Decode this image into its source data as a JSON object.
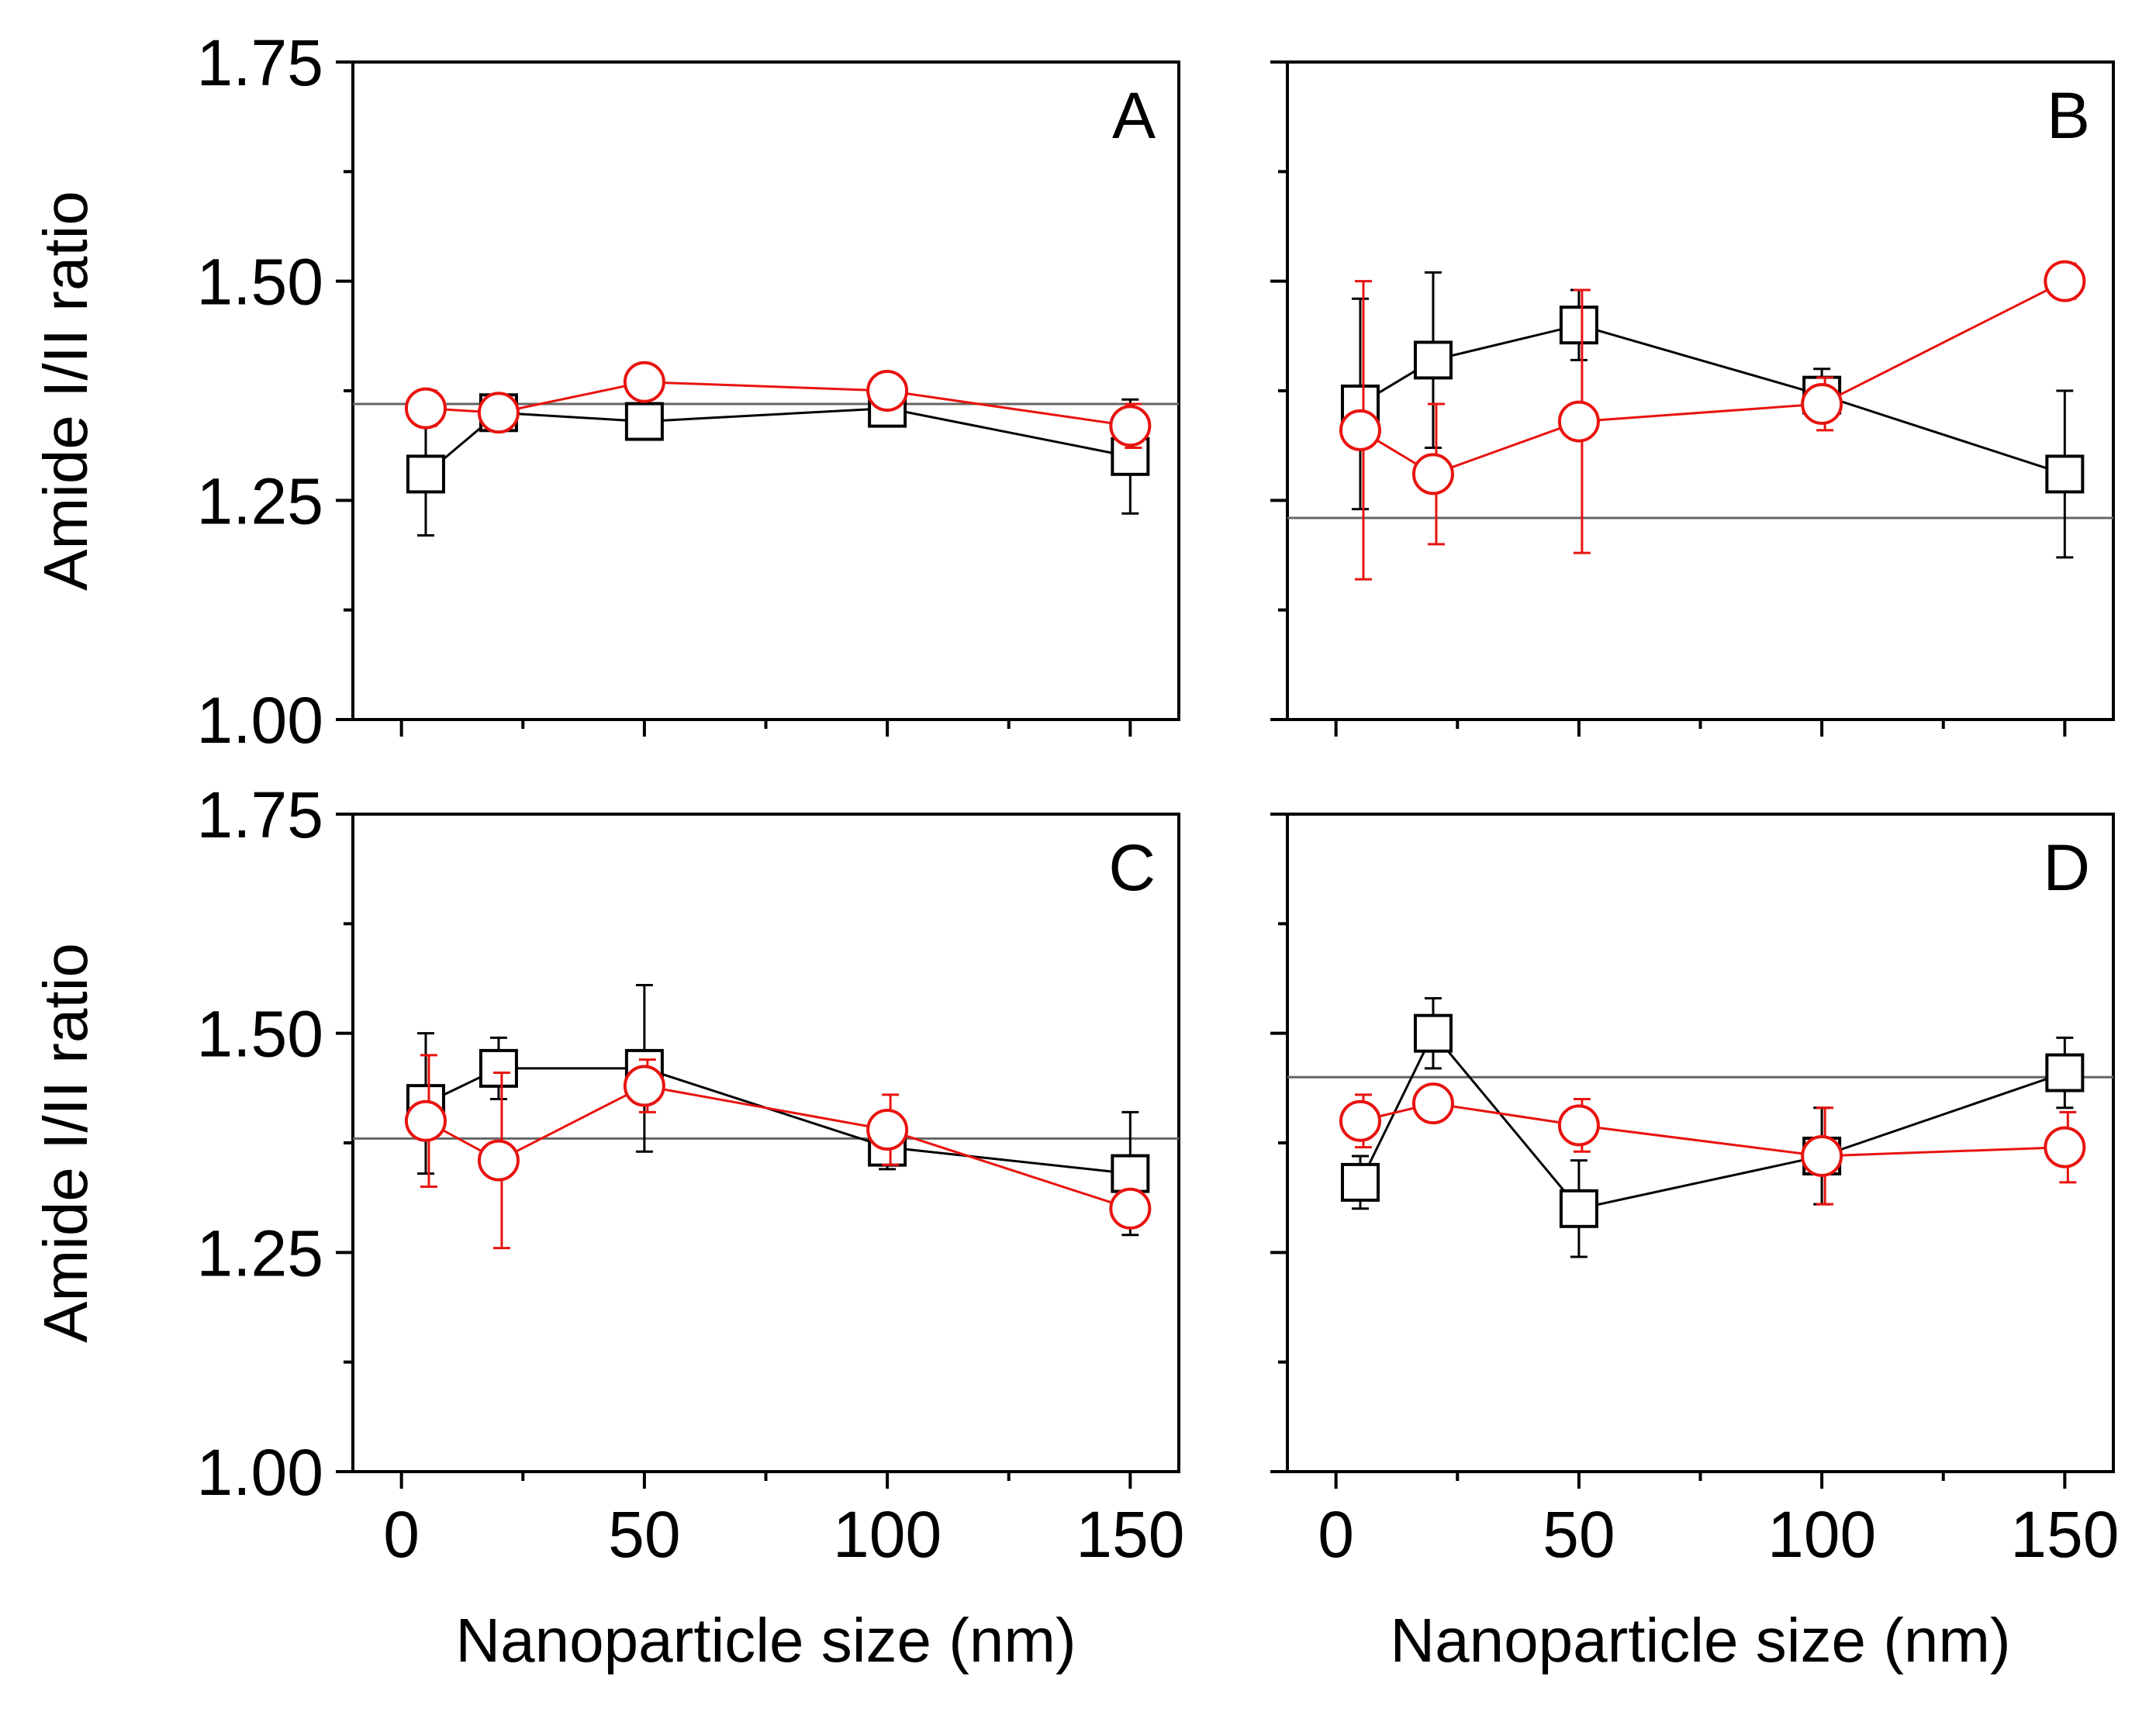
{
  "chart_data": [
    {
      "panel": "A",
      "type": "scatter",
      "xlabel": "",
      "ylabel": "Amide I/II ratio",
      "ylim": [
        1.0,
        1.75
      ],
      "yticks": [
        "1.00",
        "1.25",
        "1.50",
        "1.75"
      ],
      "xticks": [],
      "reference_line": 1.36,
      "series": [
        {
          "name": "black squares",
          "color": "#000000",
          "marker": "square",
          "x": [
            5,
            20,
            50,
            100,
            150
          ],
          "y": [
            1.28,
            1.35,
            1.34,
            1.355,
            1.3
          ],
          "err": [
            0.07,
            0.005,
            0.005,
            0.015,
            0.065
          ]
        },
        {
          "name": "red circles",
          "color": "#e8130f",
          "marker": "circle",
          "x": [
            5,
            20,
            50,
            100,
            150
          ],
          "y": [
            1.355,
            1.35,
            1.385,
            1.375,
            1.335
          ],
          "err": [
            0.02,
            0.01,
            0.015,
            0.01,
            0.025
          ]
        }
      ]
    },
    {
      "panel": "B",
      "type": "scatter",
      "xlabel": "",
      "ylabel": "",
      "ylim": [
        1.0,
        1.75
      ],
      "yticks": [],
      "xticks": [],
      "reference_line": 1.23,
      "series": [
        {
          "name": "black squares",
          "color": "#000000",
          "marker": "square",
          "x": [
            5,
            20,
            50,
            100,
            150
          ],
          "y": [
            1.36,
            1.41,
            1.45,
            1.37,
            1.28
          ],
          "err": [
            0.12,
            0.1,
            0.04,
            0.03,
            0.095
          ]
        },
        {
          "name": "red circles",
          "color": "#e8130f",
          "marker": "circle",
          "x": [
            5,
            20,
            50,
            100,
            150
          ],
          "y": [
            1.33,
            1.28,
            1.34,
            1.36,
            1.5
          ],
          "err": [
            0.17,
            0.08,
            0.15,
            0.03,
            0.02
          ]
        }
      ]
    },
    {
      "panel": "C",
      "type": "scatter",
      "xlabel": "Nanoparticle size (nm)",
      "ylabel": "Amide I/II ratio",
      "ylim": [
        1.0,
        1.75
      ],
      "yticks": [
        "1.00",
        "1.25",
        "1.50",
        "1.75"
      ],
      "xticks": [
        "0",
        "50",
        "100",
        "150"
      ],
      "reference_line": 1.38,
      "series": [
        {
          "name": "black squares",
          "color": "#000000",
          "marker": "square",
          "x": [
            5,
            20,
            50,
            100,
            150
          ],
          "y": [
            1.42,
            1.46,
            1.46,
            1.37,
            1.34
          ],
          "err": [
            0.08,
            0.035,
            0.095,
            0.025,
            0.07
          ]
        },
        {
          "name": "red circles",
          "color": "#e8130f",
          "marker": "circle",
          "x": [
            5,
            20,
            50,
            100,
            150
          ],
          "y": [
            1.4,
            1.355,
            1.44,
            1.39,
            1.3
          ],
          "err": [
            0.075,
            0.1,
            0.03,
            0.04,
            0.015
          ]
        }
      ]
    },
    {
      "panel": "D",
      "type": "scatter",
      "xlabel": "Nanoparticle size (nm)",
      "ylabel": "",
      "ylim": [
        1.0,
        1.75
      ],
      "yticks": [],
      "xticks": [
        "0",
        "50",
        "100",
        "150"
      ],
      "reference_line": 1.45,
      "series": [
        {
          "name": "black squares",
          "color": "#000000",
          "marker": "square",
          "x": [
            5,
            20,
            50,
            100,
            150
          ],
          "y": [
            1.33,
            1.5,
            1.3,
            1.36,
            1.455
          ],
          "err": [
            0.03,
            0.04,
            0.055,
            0.055,
            0.04
          ]
        },
        {
          "name": "red circles",
          "color": "#e8130f",
          "marker": "circle",
          "x": [
            5,
            20,
            50,
            100,
            150
          ],
          "y": [
            1.4,
            1.42,
            1.395,
            1.36,
            1.37
          ],
          "err": [
            0.03,
            0.015,
            0.03,
            0.055,
            0.04
          ]
        }
      ]
    }
  ]
}
